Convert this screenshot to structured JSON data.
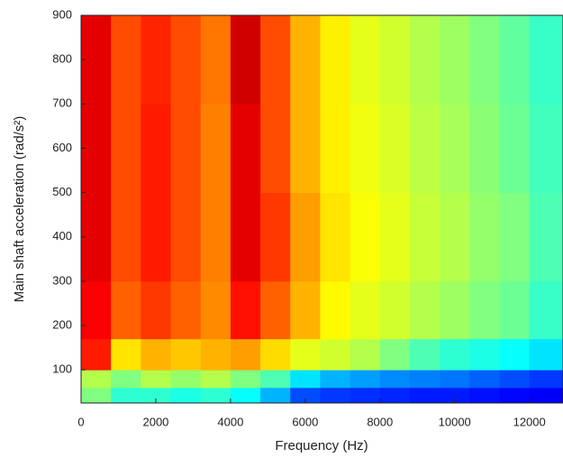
{
  "chart_data": {
    "type": "heatmap",
    "xlabel": "Frequency (Hz)",
    "ylabel": "Main shaft acceleration (rad/s²)",
    "colormap": "jet",
    "xbins": [
      0,
      800,
      1600,
      2400,
      3200,
      4000,
      4800,
      5600,
      6400,
      7200,
      8000,
      8800,
      9600,
      10400,
      11200,
      12000,
      12900
    ],
    "ybins": [
      25,
      60,
      100,
      170,
      300,
      500,
      700,
      900
    ],
    "z": [
      [
        0.5,
        0.42,
        0.42,
        0.4,
        0.42,
        0.38,
        0.3,
        0.2,
        0.18,
        0.17,
        0.16,
        0.15,
        0.15,
        0.14,
        0.13,
        0.12
      ],
      [
        0.55,
        0.5,
        0.55,
        0.52,
        0.55,
        0.5,
        0.45,
        0.35,
        0.3,
        0.28,
        0.26,
        0.25,
        0.24,
        0.22,
        0.2,
        0.18
      ],
      [
        0.85,
        0.65,
        0.7,
        0.68,
        0.7,
        0.72,
        0.66,
        0.6,
        0.58,
        0.55,
        0.5,
        0.45,
        0.42,
        0.4,
        0.38,
        0.35
      ],
      [
        0.88,
        0.78,
        0.82,
        0.78,
        0.74,
        0.86,
        0.78,
        0.7,
        0.63,
        0.6,
        0.58,
        0.55,
        0.53,
        0.5,
        0.48,
        0.43
      ],
      [
        0.9,
        0.8,
        0.85,
        0.8,
        0.75,
        0.9,
        0.82,
        0.72,
        0.65,
        0.62,
        0.6,
        0.57,
        0.55,
        0.52,
        0.5,
        0.45
      ],
      [
        0.9,
        0.8,
        0.85,
        0.8,
        0.75,
        0.9,
        0.8,
        0.7,
        0.64,
        0.61,
        0.59,
        0.56,
        0.54,
        0.51,
        0.48,
        0.44
      ],
      [
        0.9,
        0.8,
        0.84,
        0.8,
        0.76,
        0.92,
        0.8,
        0.7,
        0.64,
        0.6,
        0.58,
        0.55,
        0.53,
        0.5,
        0.47,
        0.43
      ]
    ],
    "xlim": [
      0,
      12900
    ],
    "ylim": [
      25,
      900
    ],
    "xticks": [
      0,
      2000,
      4000,
      6000,
      8000,
      10000,
      12000
    ],
    "yticks": [
      100,
      200,
      300,
      400,
      500,
      600,
      700,
      800,
      900
    ]
  }
}
